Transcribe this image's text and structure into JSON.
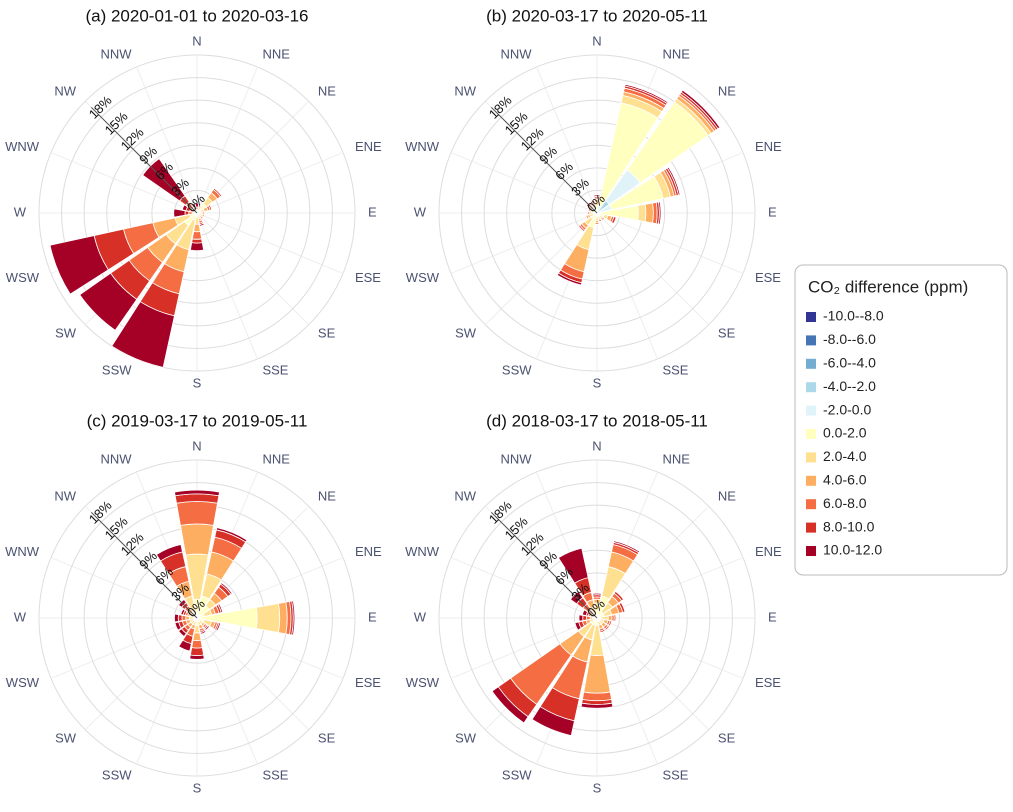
{
  "legend": {
    "title": "CO₂ difference (ppm)",
    "names": [
      "-10.0--8.0",
      "-8.0--6.0",
      "-6.0--4.0",
      "-4.0--2.0",
      "-2.0-0.0",
      "0.0-2.0",
      "2.0-4.0",
      "4.0-6.0",
      "6.0-8.0",
      "8.0-10.0",
      "10.0-12.0"
    ],
    "colors": [
      "#313695",
      "#4575b4",
      "#74add1",
      "#abd9e9",
      "#e0f3f8",
      "#ffffbf",
      "#fee090",
      "#fdae61",
      "#f46d43",
      "#d73027",
      "#a50026"
    ]
  },
  "chart_data": [
    {
      "type": "rose",
      "title": "(a) 2020-01-01 to 2020-03-16",
      "categories": [
        "N",
        "NNE",
        "NE",
        "ENE",
        "E",
        "ESE",
        "SE",
        "SSE",
        "S",
        "SSW",
        "SW",
        "WSW",
        "W",
        "WNW",
        "NW",
        "NNW"
      ],
      "rlim": [
        0,
        21
      ],
      "rticks": [
        {
          "value": 0,
          "label": "0%"
        },
        {
          "value": 3,
          "label": "3%"
        },
        {
          "value": 6,
          "label": "6%"
        },
        {
          "value": 9,
          "label": "9%"
        },
        {
          "value": 12,
          "label": "12%"
        },
        {
          "value": 15,
          "label": "15%"
        },
        {
          "value": 18,
          "label": "18%"
        }
      ],
      "series": [
        {
          "values": [
            0,
            0,
            0,
            0,
            0,
            0,
            0,
            0,
            0,
            0,
            0,
            0,
            0,
            0,
            0,
            0
          ]
        },
        {
          "values": [
            0,
            0,
            0,
            0,
            0,
            0,
            0,
            0,
            0,
            0,
            0,
            0,
            0,
            0,
            0,
            0
          ]
        },
        {
          "values": [
            0,
            0,
            0,
            0,
            0,
            0,
            0,
            0,
            0,
            0,
            0,
            0,
            0,
            0,
            0,
            0
          ]
        },
        {
          "values": [
            0,
            0,
            0,
            0,
            0,
            0,
            0,
            0,
            0,
            0,
            0,
            0,
            0,
            0,
            0,
            0
          ]
        },
        {
          "values": [
            0,
            0,
            0.5,
            0,
            0,
            0,
            0,
            0,
            0,
            0,
            0,
            0,
            0,
            0,
            0,
            0
          ]
        },
        {
          "values": [
            0,
            0.3,
            1,
            0.5,
            0.3,
            0.3,
            0.3,
            0.3,
            0.5,
            1,
            2,
            1,
            0,
            0,
            0,
            0
          ]
        },
        {
          "values": [
            0,
            0.3,
            1,
            0.5,
            0.3,
            0.3,
            0.3,
            0.5,
            1,
            4,
            3,
            2,
            0.3,
            0.3,
            0.3,
            0
          ]
        },
        {
          "values": [
            0.2,
            0.2,
            0.8,
            0.5,
            0.2,
            0.2,
            0.2,
            0.3,
            1,
            3,
            3,
            3,
            0.3,
            0.3,
            0.5,
            0.2
          ]
        },
        {
          "values": [
            0.3,
            0.2,
            0.5,
            0.3,
            0.2,
            0.2,
            0.2,
            0.3,
            1,
            3,
            3,
            4,
            0.5,
            0.4,
            1,
            0.3
          ]
        },
        {
          "values": [
            0.3,
            0,
            0.2,
            0.2,
            0,
            0,
            0,
            0.2,
            0.5,
            3,
            3,
            4,
            0.5,
            0.5,
            1,
            0.3
          ]
        },
        {
          "values": [
            0.5,
            0,
            0,
            0,
            0,
            0,
            0,
            0.2,
            1,
            7,
            5,
            6,
            1.5,
            0.5,
            6,
            0.5
          ]
        }
      ]
    },
    {
      "type": "rose",
      "title": "(b) 2020-03-17 to 2020-05-11",
      "categories": [
        "N",
        "NNE",
        "NE",
        "ENE",
        "E",
        "ESE",
        "SE",
        "SSE",
        "S",
        "SSW",
        "SW",
        "WSW",
        "W",
        "WNW",
        "NW",
        "NNW"
      ],
      "rlim": [
        0,
        21
      ],
      "rticks": [
        {
          "value": 0,
          "label": "0%"
        },
        {
          "value": 3,
          "label": "3%"
        },
        {
          "value": 6,
          "label": "6%"
        },
        {
          "value": 9,
          "label": "9%"
        },
        {
          "value": 12,
          "label": "12%"
        },
        {
          "value": 15,
          "label": "15%"
        },
        {
          "value": 18,
          "label": "18%"
        }
      ],
      "series": [
        {
          "values": [
            0,
            0,
            0,
            0,
            0,
            0,
            0,
            0,
            0,
            0,
            0,
            0,
            0,
            0,
            0,
            0
          ]
        },
        {
          "values": [
            0,
            0,
            0,
            0,
            0,
            0,
            0,
            0,
            0,
            0,
            0,
            0,
            0,
            0,
            0,
            0
          ]
        },
        {
          "values": [
            0,
            0,
            0,
            0,
            0,
            0,
            0,
            0,
            0,
            0,
            0,
            0,
            0,
            0,
            0,
            0
          ]
        },
        {
          "values": [
            0,
            0,
            2,
            0,
            0,
            0,
            0,
            0,
            0,
            0,
            0,
            0,
            0,
            0,
            0,
            0
          ]
        },
        {
          "values": [
            0,
            1,
            5,
            2,
            0.5,
            0,
            0,
            0,
            0,
            0,
            0,
            0,
            0,
            0,
            0,
            0
          ]
        },
        {
          "values": [
            1,
            14,
            11,
            7,
            5,
            1,
            0.5,
            0.5,
            0.5,
            2,
            1,
            0.5,
            0.5,
            0.5,
            0.5,
            0.5
          ]
        },
        {
          "values": [
            0.5,
            1,
            0.5,
            1,
            1,
            0.5,
            0.3,
            0.3,
            0.5,
            3,
            1,
            0.5,
            0.3,
            0.3,
            0.3,
            0.3
          ]
        },
        {
          "values": [
            0.3,
            0.5,
            0.5,
            0.5,
            1,
            0.5,
            0.2,
            0.2,
            0.3,
            3,
            0.5,
            0.3,
            0.2,
            0.2,
            0.3,
            0.3
          ]
        },
        {
          "values": [
            0.2,
            0.5,
            0.3,
            0.3,
            0.5,
            0.3,
            0.2,
            0.2,
            0.2,
            1,
            0.3,
            0.2,
            0.2,
            0.2,
            0.2,
            0.2
          ]
        },
        {
          "values": [
            0.2,
            0.3,
            0.3,
            0.3,
            0.3,
            0.3,
            0,
            0,
            0,
            0.5,
            0.2,
            0,
            0,
            0,
            0.2,
            0.2
          ]
        },
        {
          "values": [
            0.2,
            0.2,
            0.3,
            0.2,
            0.2,
            0,
            0,
            0,
            0,
            0.3,
            0,
            0,
            0,
            0,
            0.2,
            0.2
          ]
        }
      ]
    },
    {
      "type": "rose",
      "title": "(c) 2019-03-17 to 2019-05-11",
      "categories": [
        "N",
        "NNE",
        "NE",
        "ENE",
        "E",
        "ESE",
        "SE",
        "SSE",
        "S",
        "SSW",
        "SW",
        "WSW",
        "W",
        "WNW",
        "NW",
        "NNW"
      ],
      "rlim": [
        0,
        21
      ],
      "rticks": [
        {
          "value": 0,
          "label": "0%"
        },
        {
          "value": 3,
          "label": "3%"
        },
        {
          "value": 6,
          "label": "6%"
        },
        {
          "value": 9,
          "label": "9%"
        },
        {
          "value": 12,
          "label": "12%"
        },
        {
          "value": 15,
          "label": "15%"
        },
        {
          "value": 18,
          "label": "18%"
        }
      ],
      "series": [
        {
          "values": [
            0,
            0,
            0,
            0,
            0,
            0,
            0,
            0,
            0,
            0,
            0,
            0,
            0,
            0,
            0,
            0
          ]
        },
        {
          "values": [
            0,
            0,
            0,
            0,
            0,
            0,
            0,
            0,
            0,
            0,
            0,
            0,
            0,
            0,
            0,
            0
          ]
        },
        {
          "values": [
            0,
            0,
            0,
            0,
            0,
            0,
            0,
            0,
            0,
            0,
            0,
            0,
            0,
            0,
            0,
            0
          ]
        },
        {
          "values": [
            0,
            0,
            0,
            0,
            0,
            0,
            0,
            0,
            0,
            0,
            0,
            0,
            0,
            0,
            0,
            0
          ]
        },
        {
          "values": [
            0.5,
            0,
            0,
            0,
            0,
            0,
            0,
            0,
            0,
            0,
            0,
            0,
            0,
            0,
            0,
            0
          ]
        },
        {
          "values": [
            2,
            3,
            2,
            1,
            8,
            1,
            0.5,
            0.5,
            1,
            0.5,
            0.5,
            0.5,
            0.5,
            0.5,
            0.5,
            1
          ]
        },
        {
          "values": [
            6,
            3,
            1,
            1,
            3,
            1,
            0.5,
            0.5,
            1,
            0.5,
            0.5,
            0.5,
            0.5,
            0.5,
            0.5,
            2
          ]
        },
        {
          "values": [
            4,
            3,
            1,
            0.5,
            1,
            0.5,
            0.3,
            0.5,
            1,
            0.5,
            0.5,
            0.5,
            0.5,
            0.3,
            0.5,
            2
          ]
        },
        {
          "values": [
            3,
            2,
            1,
            0.5,
            0.5,
            0.3,
            0.3,
            0.3,
            1,
            1,
            0.5,
            0.5,
            0.5,
            0.3,
            0.5,
            2
          ]
        },
        {
          "values": [
            1,
            1,
            0.5,
            0.3,
            0.3,
            0.2,
            0.2,
            0.2,
            1,
            1,
            0.5,
            0.5,
            0.5,
            0.3,
            0.5,
            2
          ]
        },
        {
          "values": [
            0.5,
            0.3,
            0.2,
            0.2,
            0.2,
            0.2,
            0.2,
            0.2,
            0.5,
            1,
            0.5,
            0.5,
            0.5,
            0.3,
            0.5,
            1
          ]
        }
      ]
    },
    {
      "type": "rose",
      "title": "(d) 2018-03-17 to 2018-05-11",
      "categories": [
        "N",
        "NNE",
        "NE",
        "ENE",
        "E",
        "ESE",
        "SE",
        "SSE",
        "S",
        "SSW",
        "SW",
        "WSW",
        "W",
        "WNW",
        "NW",
        "NNW"
      ],
      "rlim": [
        0,
        21
      ],
      "rticks": [
        {
          "value": 0,
          "label": "0%"
        },
        {
          "value": 3,
          "label": "3%"
        },
        {
          "value": 6,
          "label": "6%"
        },
        {
          "value": 9,
          "label": "9%"
        },
        {
          "value": 12,
          "label": "12%"
        },
        {
          "value": 15,
          "label": "15%"
        },
        {
          "value": 18,
          "label": "18%"
        }
      ],
      "series": [
        {
          "values": [
            0,
            0,
            0,
            0,
            0,
            0,
            0,
            0,
            0,
            0,
            0,
            0,
            0,
            0,
            0,
            0
          ]
        },
        {
          "values": [
            0,
            0,
            0,
            0,
            0,
            0,
            0,
            0,
            0,
            0,
            0,
            0,
            0,
            0,
            0,
            0
          ]
        },
        {
          "values": [
            0,
            0,
            0,
            0,
            0,
            0,
            0,
            0,
            0,
            0,
            0,
            0,
            0,
            0,
            0,
            0
          ]
        },
        {
          "values": [
            0,
            0,
            0,
            0,
            0,
            0,
            0,
            0,
            0,
            0,
            0,
            0,
            0,
            0,
            0,
            0
          ]
        },
        {
          "values": [
            0,
            0,
            0,
            0,
            0,
            0,
            0,
            0,
            0,
            0,
            0,
            0,
            0,
            0,
            0,
            0
          ]
        },
        {
          "values": [
            1,
            3,
            1,
            1,
            0.5,
            0.5,
            0.5,
            0.5,
            1,
            1,
            1,
            0.5,
            0.3,
            0.3,
            0.3,
            0.5
          ]
        },
        {
          "values": [
            1,
            4,
            1.5,
            1,
            1,
            0.5,
            0.5,
            0.5,
            4,
            2,
            2,
            0.5,
            0.3,
            0.3,
            0.5,
            1
          ]
        },
        {
          "values": [
            0.5,
            2,
            1,
            1,
            0.5,
            0.5,
            0.5,
            0.5,
            5,
            3,
            3,
            0.5,
            0.3,
            0.3,
            0.5,
            1
          ]
        },
        {
          "values": [
            0.3,
            1,
            0.5,
            0.5,
            0.3,
            0.3,
            0.3,
            0.3,
            1,
            5,
            8,
            0.5,
            0.5,
            0.3,
            1,
            1
          ]
        },
        {
          "values": [
            0.3,
            0.3,
            0.3,
            0.3,
            0.2,
            0.2,
            0.2,
            0.2,
            0.5,
            3,
            2,
            0.5,
            0.5,
            0.3,
            1,
            2
          ]
        },
        {
          "values": [
            0.2,
            0.2,
            0,
            0,
            0,
            0,
            0,
            0,
            0.5,
            2,
            1,
            0.5,
            0.5,
            0.5,
            1,
            4
          ]
        }
      ]
    }
  ]
}
